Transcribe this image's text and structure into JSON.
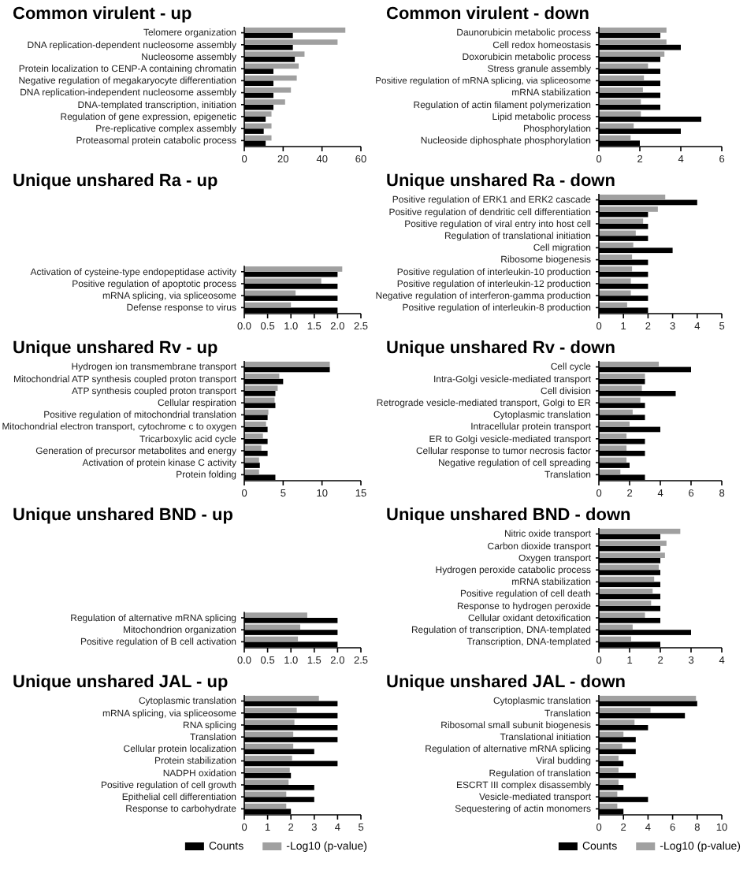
{
  "chart_data": [
    {
      "type": "bar",
      "orientation": "horizontal",
      "title": "Common virulent - up",
      "categories": [
        "Telomere organization",
        "DNA replication-dependent nucleosome assembly",
        "Nucleosome assembly",
        "Protein localization to CENP-A containing chromatin",
        "Negative regulation of megakaryocyte differentiation",
        "DNA replication-independent nucleosome assembly",
        "DNA-templated transcription, initiation",
        "Regulation of gene expression, epigenetic",
        "Pre-replicative complex assembly",
        "Proteasomal protein catabolic process"
      ],
      "xlim": [
        0,
        60
      ],
      "xticks": [
        0,
        20,
        40,
        60
      ],
      "series": [
        {
          "color": "#000000",
          "values": [
            25,
            25,
            26,
            15,
            15,
            15,
            15,
            11,
            10,
            11
          ]
        },
        {
          "color": "#a0a0a0",
          "values": [
            52,
            48,
            31,
            28,
            27,
            24,
            21,
            14,
            14,
            14
          ]
        }
      ]
    },
    {
      "type": "bar",
      "orientation": "horizontal",
      "title": "Common virulent - down",
      "categories": [
        "Daunorubicin metabolic process",
        "Cell redox homeostasis",
        "Doxorubicin metabolic process",
        "Stress granule assembly",
        "Positive regulation of mRNA splicing, via spliceosome",
        "mRNA stabilization",
        "Regulation of actin filament polymerization",
        "Lipid metabolic process",
        "Phosphorylation",
        "Nucleoside diphosphate phosphorylation"
      ],
      "xlim": [
        0,
        6
      ],
      "xticks": [
        0,
        2,
        4,
        6
      ],
      "series": [
        {
          "color": "#000000",
          "values": [
            3,
            4,
            3,
            3,
            3,
            3,
            3,
            5,
            4,
            2
          ]
        },
        {
          "color": "#a0a0a0",
          "values": [
            3.3,
            3.3,
            3.2,
            2.4,
            2.2,
            2.15,
            2.05,
            2.05,
            1.7,
            1.55
          ]
        }
      ]
    },
    {
      "type": "bar",
      "orientation": "horizontal",
      "title": "Unique unshared Ra - up",
      "categories": [
        "Activation of cysteine-type endopeptidase activity",
        "Positive regulation of apoptotic process",
        "mRNA splicing, via spliceosome",
        "Defense response to virus"
      ],
      "xlim": [
        0,
        2.5
      ],
      "xticks": [
        {
          "value": 0,
          "label": "0.0"
        },
        0.5,
        {
          "value": 1,
          "label": "1.0"
        },
        1.5,
        {
          "value": 2,
          "label": "2.0"
        },
        2.5
      ],
      "series": [
        {
          "color": "#000000",
          "values": [
            2,
            2,
            2,
            2
          ]
        },
        {
          "color": "#a0a0a0",
          "values": [
            2.1,
            1.65,
            1.1,
            1.0
          ]
        }
      ]
    },
    {
      "type": "bar",
      "orientation": "horizontal",
      "title": "Unique unshared Ra - down",
      "categories": [
        "Positive regulation of ERK1 and ERK2 cascade",
        "Positive regulation of dendritic cell differentiation",
        "Positive regulation of viral entry into host cell",
        "Regulation of translational initiation",
        "Cell migration",
        "Ribosome biogenesis",
        "Positive regulation of interleukin-10 production",
        "Positive regulation of interleukin-12 production",
        "Negative regulation of interferon-gamma production",
        "Positive regulation of interleukin-8 production"
      ],
      "xlim": [
        0,
        5
      ],
      "xticks": [
        0,
        1,
        2,
        3,
        4,
        5
      ],
      "series": [
        {
          "color": "#000000",
          "values": [
            4,
            2,
            2,
            2,
            3,
            2,
            2,
            2,
            2,
            2
          ]
        },
        {
          "color": "#a0a0a0",
          "values": [
            2.7,
            2.4,
            1.8,
            1.5,
            1.4,
            1.35,
            1.35,
            1.3,
            1.3,
            1.15
          ]
        }
      ]
    },
    {
      "type": "bar",
      "orientation": "horizontal",
      "title": "Unique unshared Rv - up",
      "categories": [
        "Hydrogen ion transmembrane transport",
        "Mitochondrial ATP synthesis coupled proton transport",
        "ATP synthesis coupled proton transport",
        "Cellular respiration",
        "Positive regulation of mitochondrial translation",
        "Mitochondrial electron transport, cytochrome c to oxygen",
        "Tricarboxylic acid cycle",
        "Generation of precursor metabolites and energy",
        "Activation of protein kinase C activity",
        "Protein folding"
      ],
      "xlim": [
        0,
        15
      ],
      "xticks": [
        0,
        5,
        10,
        15
      ],
      "series": [
        {
          "color": "#000000",
          "values": [
            11,
            5,
            4,
            4,
            3,
            3,
            3,
            3,
            2,
            4
          ]
        },
        {
          "color": "#a0a0a0",
          "values": [
            11,
            4.5,
            4.3,
            3.9,
            3.1,
            2.8,
            2.4,
            2.2,
            1.9,
            1.9
          ]
        }
      ]
    },
    {
      "type": "bar",
      "orientation": "horizontal",
      "title": "Unique unshared Rv - down",
      "categories": [
        "Cell cycle",
        "Intra-Golgi vesicle-mediated transport",
        "Cell division",
        "Retrograde vesicle-mediated transport, Golgi to ER",
        "Cytoplasmic translation",
        "Intracellular protein transport",
        "ER to Golgi vesicle-mediated transport",
        "Cellular response to tumor necrosis factor",
        "Negative regulation of cell spreading",
        "Translation"
      ],
      "xlim": [
        0,
        8
      ],
      "xticks": [
        0,
        2,
        4,
        6,
        8
      ],
      "series": [
        {
          "color": "#000000",
          "values": [
            6,
            3,
            5,
            3,
            3,
            4,
            3,
            3,
            2,
            3
          ]
        },
        {
          "color": "#a0a0a0",
          "values": [
            3.9,
            3.0,
            2.8,
            2.7,
            2.2,
            2.0,
            1.8,
            1.8,
            1.8,
            1.4
          ]
        }
      ]
    },
    {
      "type": "bar",
      "orientation": "horizontal",
      "title": "Unique unshared BND - up",
      "categories": [
        "Regulation of alternative mRNA splicing",
        "Mitochondrion organization",
        "Positive regulation of B cell activation"
      ],
      "xlim": [
        0,
        2.5
      ],
      "xticks": [
        {
          "value": 0,
          "label": "0.0"
        },
        0.5,
        {
          "value": 1,
          "label": "1.0"
        },
        1.5,
        {
          "value": 2,
          "label": "2.0"
        },
        2.5
      ],
      "series": [
        {
          "color": "#000000",
          "values": [
            2,
            2,
            2
          ]
        },
        {
          "color": "#a0a0a0",
          "values": [
            1.35,
            1.2,
            1.15
          ]
        }
      ]
    },
    {
      "type": "bar",
      "orientation": "horizontal",
      "title": "Unique unshared BND - down",
      "categories": [
        "Nitric oxide transport",
        "Carbon dioxide transport",
        "Oxygen transport",
        "Hydrogen peroxide catabolic process",
        "mRNA stabilization",
        "Positive regulation of cell death",
        "Response to hydrogen peroxide",
        "Cellular oxidant detoxification",
        "Regulation of transcription, DNA-templated",
        "Transcription, DNA-templated"
      ],
      "xlim": [
        0,
        4
      ],
      "xticks": [
        0,
        1,
        2,
        3,
        4
      ],
      "series": [
        {
          "color": "#000000",
          "values": [
            2,
            2,
            2,
            2,
            2,
            2,
            2,
            2,
            3,
            2
          ]
        },
        {
          "color": "#a0a0a0",
          "values": [
            2.65,
            2.2,
            2.15,
            1.95,
            1.8,
            1.75,
            1.7,
            1.5,
            1.1,
            1.05
          ]
        }
      ]
    },
    {
      "type": "bar",
      "orientation": "horizontal",
      "title": "Unique unshared JAL - up",
      "categories": [
        "Cytoplasmic translation",
        "mRNA splicing, via spliceosome",
        "RNA splicing",
        "Translation",
        "Cellular protein localization",
        "Protein stabilization",
        "NADPH oxidation",
        "Positive regulation of cell growth",
        "Epithelial cell differentiation",
        "Response to carbohydrate"
      ],
      "xlim": [
        0,
        5
      ],
      "xticks": [
        0,
        1,
        2,
        3,
        4,
        5
      ],
      "legend": "bottom",
      "series": [
        {
          "name": "Counts",
          "color": "#000000",
          "values": [
            4,
            4,
            4,
            4,
            3,
            4,
            2,
            3,
            3,
            2
          ]
        },
        {
          "name": "-Log10 (p-value)",
          "color": "#a0a0a0",
          "values": [
            3.2,
            2.25,
            2.15,
            2.1,
            2.1,
            2.05,
            1.95,
            1.9,
            1.8,
            1.8
          ]
        }
      ]
    },
    {
      "type": "bar",
      "orientation": "horizontal",
      "title": "Unique unshared JAL - down",
      "categories": [
        "Cytoplasmic translation",
        "Translation",
        "Ribosomal small subunit biogenesis",
        "Translational initiation",
        "Regulation of alternative mRNA splicing",
        "Viral budding",
        "Regulation of translation",
        "ESCRT III complex disassembly",
        "Vesicle-mediated transport",
        "Sequestering of actin monomers"
      ],
      "xlim": [
        0,
        10
      ],
      "xticks": [
        0,
        2,
        4,
        6,
        8,
        10
      ],
      "legend": "bottom",
      "series": [
        {
          "name": "Counts",
          "color": "#000000",
          "values": [
            8,
            7,
            4,
            3,
            3,
            2,
            3,
            2,
            4,
            2
          ]
        },
        {
          "name": "-Log10 (p-value)",
          "color": "#a0a0a0",
          "values": [
            7.9,
            4.2,
            2.9,
            2.0,
            1.9,
            1.6,
            1.6,
            1.6,
            1.5,
            1.5
          ]
        }
      ]
    }
  ]
}
